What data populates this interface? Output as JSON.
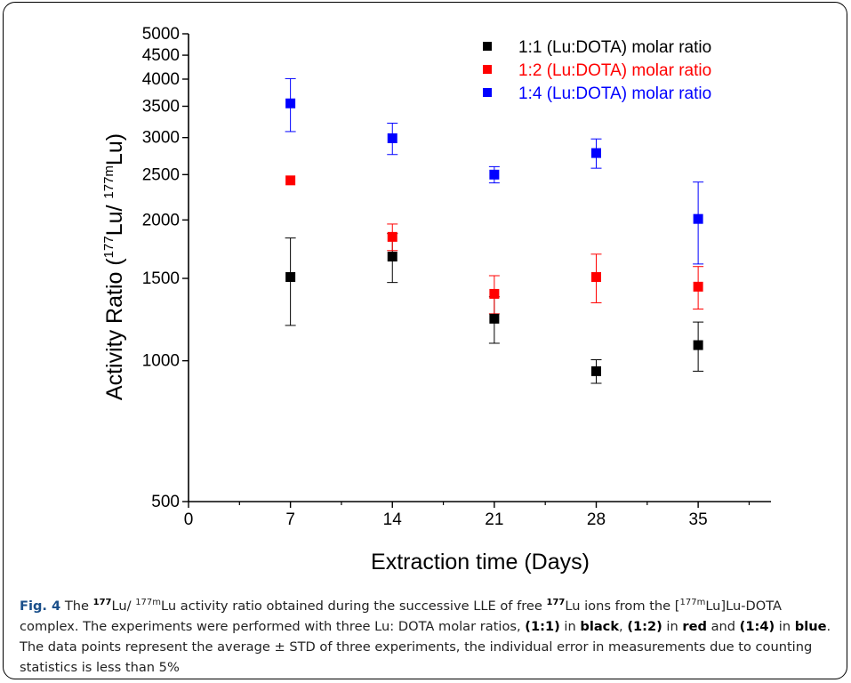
{
  "chart_data": {
    "type": "scatter",
    "xlabel": "Extraction time (Days)",
    "ylabel": "Activity Ratio (",
    "ylabel_iso1": "177",
    "ylabel_mid": "Lu/ ",
    "ylabel_iso2": "177m",
    "ylabel_end": "Lu)",
    "yscale": "log",
    "xlim": [
      0,
      40
    ],
    "ylim": [
      500,
      5000
    ],
    "xticks": [
      0,
      7,
      14,
      21,
      28,
      35
    ],
    "yticks": [
      500,
      1000,
      1500,
      2000,
      2500,
      3000,
      3500,
      4000,
      4500,
      5000
    ],
    "legend_position": "top-right",
    "series": [
      {
        "name": "1:1 (Lu:DOTA) molar ratio",
        "color": "#000000",
        "x": [
          7,
          14,
          21,
          28,
          35
        ],
        "y": [
          1510,
          1670,
          1230,
          950,
          1080
        ],
        "err": [
          320,
          200,
          140,
          55,
          130
        ]
      },
      {
        "name": "1:2 (Lu:DOTA) molar ratio",
        "color": "#ff0000",
        "x": [
          7,
          14,
          21,
          28,
          35
        ],
        "y": [
          2430,
          1840,
          1390,
          1510,
          1440
        ],
        "err": [
          0,
          120,
          130,
          180,
          150
        ]
      },
      {
        "name": "1:4 (Lu:DOTA) molar ratio",
        "color": "#0000ff",
        "x": [
          7,
          14,
          21,
          28,
          35
        ],
        "y": [
          3550,
          2990,
          2500,
          2780,
          2010
        ],
        "err": [
          460,
          230,
          100,
          200,
          400
        ]
      }
    ]
  },
  "caption": {
    "label": "Fig. 4",
    "t1": " The ",
    "iso_a": "177",
    "t2": "Lu/ ",
    "iso_b": "177m",
    "t3": "Lu activity ratio obtained during the successive LLE of free ",
    "iso_c": "177",
    "t4": "Lu ions from the [",
    "iso_d": "177m",
    "t5": "Lu]Lu-DOTA complex. The experiments were performed with three Lu: DOTA molar ratios, ",
    "r1": "(1:1)",
    "t6": " in ",
    "c1": "black",
    "t7": ", ",
    "r2": "(1:2)",
    "t8": " in ",
    "c2": "red",
    "t9": " and ",
    "r3": "(1:4)",
    "t10": " in ",
    "c3": "blue",
    "t11": ". The data points represent the average ± STD of three experiments, the individual error in measurements due to counting statistics is less than 5%"
  }
}
